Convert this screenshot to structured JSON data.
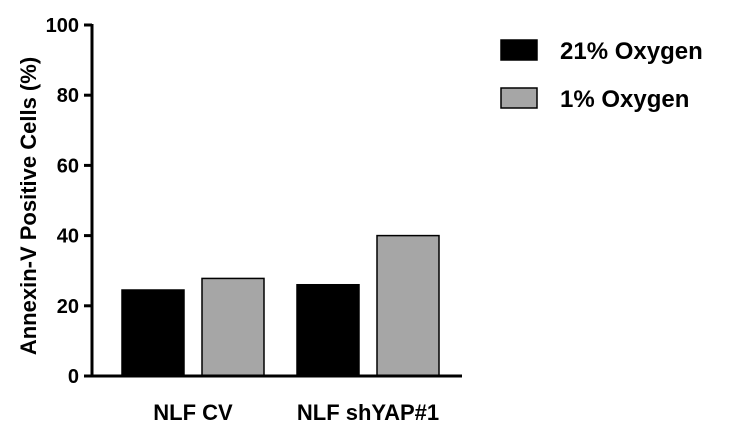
{
  "chart_data": {
    "type": "bar",
    "categories": [
      "NLF CV",
      "NLF shYAP#1"
    ],
    "series": [
      {
        "name": "21% Oxygen",
        "values": [
          24.5,
          26
        ],
        "color": "#000000"
      },
      {
        "name": "1% Oxygen",
        "values": [
          27.8,
          40
        ],
        "color": "#a6a6a6"
      }
    ],
    "ylabel": "Annexin-V Positive Cells (%)",
    "xlabel": "",
    "ylim": [
      0,
      100
    ],
    "yticks": [
      0,
      20,
      40,
      60,
      80,
      100
    ],
    "grid": false,
    "legend_position": "top-right"
  }
}
